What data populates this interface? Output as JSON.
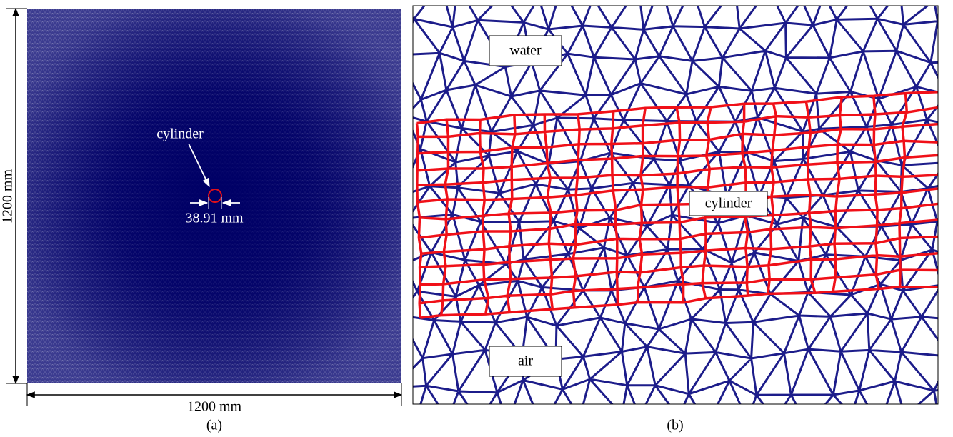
{
  "panel_a": {
    "height_label": "1200 mm",
    "width_label": "1200 mm",
    "cylinder_label": "cylinder",
    "diameter_label": "38.91 mm",
    "caption": "(a)"
  },
  "panel_b": {
    "water_label": "water",
    "cylinder_label": "cylinder",
    "air_label": "air",
    "caption": "(b)"
  }
}
